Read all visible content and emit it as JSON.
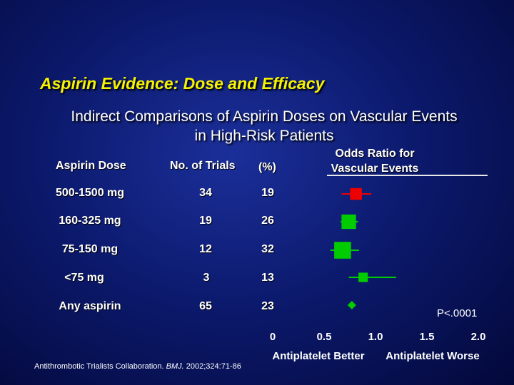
{
  "title": "Aspirin Evidence: Dose and Efficacy",
  "subtitle_line1": "Indirect Comparisons of Aspirin Doses on Vascular Events",
  "subtitle_line2": "in High-Risk Patients",
  "headers": {
    "dose": "Aspirin Dose",
    "trials": "No. of Trials",
    "pct": "(%)",
    "or_line1": "Odds Ratio for",
    "or_line2": "Vascular Events"
  },
  "rows": [
    {
      "dose": "500-1500 mg",
      "trials": "34",
      "pct": "19"
    },
    {
      "dose": "160-325 mg",
      "trials": "19",
      "pct": "26"
    },
    {
      "dose": "75-150 mg",
      "trials": "12",
      "pct": "32"
    },
    {
      "dose": "<75 mg",
      "trials": "3",
      "pct": "13"
    },
    {
      "dose": "Any aspirin",
      "trials": "65",
      "pct": "23"
    }
  ],
  "p_value": "P<.0001",
  "footnote_prefix": "Antithrombotic Trialists Collaboration.",
  "footnote_journal": "BMJ.",
  "footnote_suffix": "2002;324:71-86",
  "colors": {
    "title": "#f7f200",
    "red": "#ee0000",
    "green": "#00cc00",
    "text": "#ffffff"
  },
  "chart_data": {
    "type": "forest",
    "xlabel_left": "Antiplatelet Better",
    "xlabel_right": "Antiplatelet Worse",
    "xlim": [
      0,
      2.0
    ],
    "ticks": [
      0,
      0.5,
      1.0,
      1.5,
      2.0
    ],
    "tick_labels": [
      "0",
      "0.5",
      "1.0",
      "1.5",
      "2.0"
    ],
    "points": [
      {
        "label": "500-1500 mg",
        "or": 0.81,
        "ci": [
          0.67,
          0.96
        ],
        "weight": 19,
        "color": "red",
        "shape": "square"
      },
      {
        "label": "160-325 mg",
        "or": 0.74,
        "ci": [
          0.66,
          0.83
        ],
        "weight": 26,
        "color": "green",
        "shape": "square"
      },
      {
        "label": "75-150 mg",
        "or": 0.68,
        "ci": [
          0.56,
          0.84
        ],
        "weight": 32,
        "color": "green",
        "shape": "square"
      },
      {
        "label": "<75 mg",
        "or": 0.88,
        "ci": [
          0.74,
          1.2
        ],
        "weight": 13,
        "color": "green",
        "shape": "square"
      },
      {
        "label": "Any aspirin",
        "or": 0.77,
        "ci": [
          0.75,
          0.79
        ],
        "weight": 23,
        "color": "green",
        "shape": "diamond"
      }
    ]
  }
}
